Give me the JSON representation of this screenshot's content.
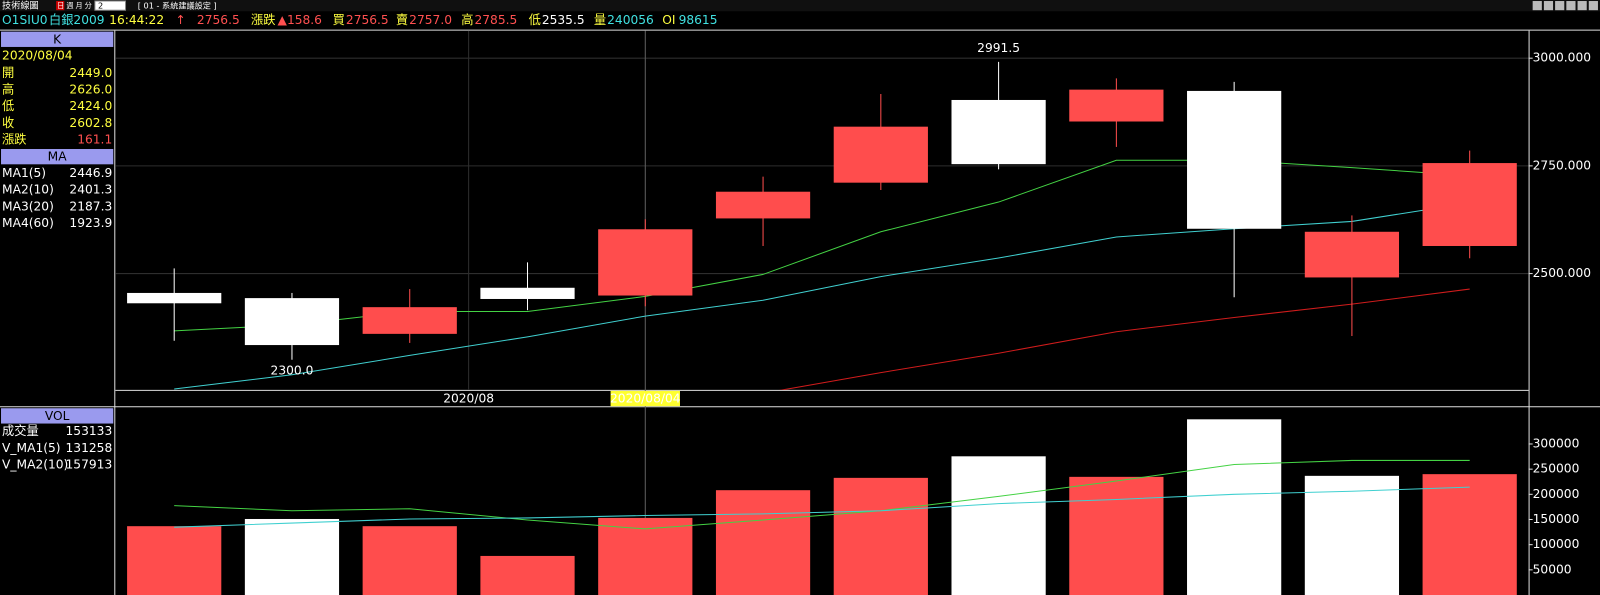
{
  "title_bar": {
    "title": "技術線圖",
    "period_buttons": [
      "日",
      "週",
      "月",
      "分"
    ],
    "period_value": "2",
    "setting": "[ 01 - 系統建議設定 ]"
  },
  "quote_bar": {
    "symbol": "O1SIU0",
    "name": "白銀2009",
    "time": "16:44:22",
    "arrow": "↑",
    "last": "2756.5",
    "change_label": "漲跌",
    "change": "▲158.6",
    "bid_label": "買",
    "bid": "2756.5",
    "ask_label": "賣",
    "ask": "2757.0",
    "high_label": "高",
    "high": "2785.5",
    "low_label": "低",
    "low": "2535.5",
    "volume_label": "量",
    "volume": "240056",
    "oi_label": "OI",
    "oi": "98615"
  },
  "side_panel": {
    "k_header": "K",
    "date": "2020/08/04",
    "k_rows": [
      [
        "開",
        "2449.0"
      ],
      [
        "高",
        "2626.0"
      ],
      [
        "低",
        "2424.0"
      ],
      [
        "收",
        "2602.8"
      ],
      [
        "漲跌",
        "161.1"
      ]
    ],
    "ma_header": "MA",
    "ma_values": [
      "2446.9",
      "2401.3",
      "2187.3",
      "1923.9"
    ],
    "vol_header": "VOL",
    "vol_values": [
      "153133",
      "131258",
      "157913"
    ]
  },
  "chart_data": [
    {
      "type": "candlestick",
      "categories": [
        null,
        null,
        null,
        "2020/08",
        "2020/08/04",
        null,
        null,
        null,
        null,
        null,
        null,
        null
      ],
      "highlight_category": "2020/08/04",
      "open": [
        2455,
        2443,
        2360,
        2467,
        2449,
        2628,
        2711,
        2903,
        2853,
        2924,
        2491,
        2564
      ],
      "high": [
        2512,
        2455,
        2464,
        2526,
        2626,
        2725,
        2917,
        2991.5,
        2953,
        2945,
        2635,
        2785.5
      ],
      "low": [
        2344,
        2300,
        2339,
        2415,
        2424,
        2564,
        2694,
        2742,
        2794,
        2445,
        2355,
        2535.5
      ],
      "close": [
        2431,
        2334,
        2422,
        2441,
        2602.8,
        2690,
        2841,
        2754,
        2927,
        2604,
        2597,
        2756.5
      ],
      "up_color": "#ff4d4d",
      "down_color": "#ffffff",
      "max_label": "2991.5",
      "min_label": "2300.0",
      "lines": [
        {
          "name": "MA1(5)",
          "color": "#44d244",
          "values": [
            2367,
            2381,
            2412,
            2412,
            2446.9,
            2498,
            2597,
            2666,
            2763,
            2763,
            2746,
            2727
          ]
        },
        {
          "name": "MA2(10)",
          "color": "#40d0d0",
          "values": [
            2232,
            2265,
            2310,
            2353,
            2401.3,
            2438,
            2493,
            2536,
            2585,
            2604,
            2621,
            2664
          ]
        },
        {
          "name": "MA3(20)",
          "color": "#d01c1c",
          "values": [
            null,
            null,
            null,
            null,
            null,
            2222,
            2270,
            2315,
            2365,
            2398,
            2429,
            2464
          ]
        },
        {
          "name": "MA4(60)",
          "color": "#e8e820",
          "values": [
            null,
            null,
            null,
            null,
            null,
            null,
            null,
            null,
            null,
            null,
            null,
            null
          ]
        }
      ],
      "ylim": [
        2230,
        3064
      ],
      "yticks": [
        {
          "value": 2500,
          "label": "2500.000"
        },
        {
          "value": 2750,
          "label": "2750.000"
        },
        {
          "value": 3000,
          "label": "3000.000"
        }
      ],
      "grid": true
    },
    {
      "type": "bar",
      "bars": {
        "name": "成交量",
        "values": [
          136700,
          151000,
          136700,
          77600,
          153133,
          208200,
          232700,
          275500,
          234700,
          349000,
          236700,
          240056
        ],
        "colors": [
          "#ff4d4d",
          "#ffffff",
          "#ff4d4d",
          "#ff4d4d",
          "#ff4d4d",
          "#ff4d4d",
          "#ff4d4d",
          "#ffffff",
          "#ff4d4d",
          "#ffffff",
          "#ffffff",
          "#ff4d4d"
        ]
      },
      "lines": [
        {
          "name": "V_MA1(5)",
          "color": "#44d244",
          "values": [
            177600,
            167300,
            171400,
            149000,
            131258,
            149000,
            167300,
            195900,
            226500,
            259200,
            267300,
            267300
          ]
        },
        {
          "name": "V_MA2(10)",
          "color": "#40d0d0",
          "values": [
            134700,
            142900,
            151000,
            153100,
            157913,
            161200,
            167300,
            181600,
            189800,
            200000,
            206100,
            214300
          ]
        }
      ],
      "ylim": [
        0,
        371000
      ],
      "yticks": [
        50000,
        100000,
        150000,
        200000,
        250000,
        300000
      ],
      "grid": false
    }
  ]
}
